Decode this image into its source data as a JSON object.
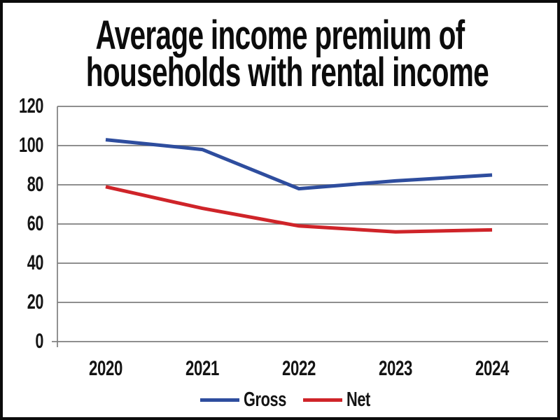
{
  "title": {
    "text": "Average income premium of households with rental income",
    "lines": [
      "Average income premium of",
      "households with rental income"
    ]
  },
  "chart_data": {
    "type": "line",
    "title": "Average income premium of households with rental income",
    "x_labels": [
      "2020",
      "2021",
      "2022",
      "2023",
      "2024"
    ],
    "series": [
      {
        "name": "Gross",
        "color": "#2e4d9e",
        "values": [
          103,
          98,
          78,
          82,
          85
        ]
      },
      {
        "name": "Net",
        "color": "#cf2429",
        "values": [
          79,
          68,
          59,
          56,
          57
        ]
      }
    ],
    "ylim": [
      0,
      120
    ],
    "ytick_step": 20,
    "yticks": [
      "120",
      "100",
      "80",
      "60",
      "40",
      "20",
      "0"
    ],
    "grid": "horizontal",
    "gridline_color": "#7f7f7f",
    "axis_color": "#7f7f7f",
    "legend_position": "bottom",
    "legend": [
      "Gross",
      "Net"
    ]
  }
}
